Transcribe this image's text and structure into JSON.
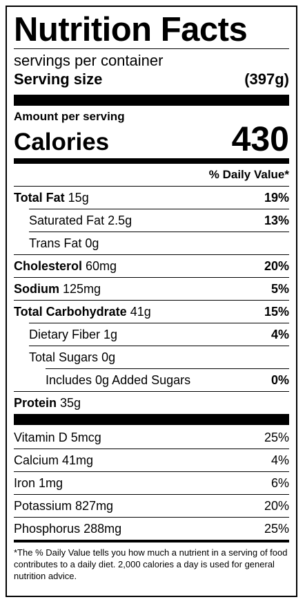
{
  "label": {
    "title": "Nutrition Facts",
    "servings_per_container": "servings per container",
    "serving_size_label": "Serving size",
    "serving_size_value": "(397g)",
    "amount_per_serving": "Amount per serving",
    "calories_label": "Calories",
    "calories_value": "430",
    "daily_value_header": "% Daily Value*",
    "nutrients": [
      {
        "name": "Total Fat",
        "amount": " 15g",
        "dv": "19%"
      },
      {
        "name": "Saturated Fat",
        "amount": " 2.5g",
        "dv": "13%"
      },
      {
        "name": "Trans Fat",
        "amount": " 0g",
        "dv": ""
      },
      {
        "name": "Cholesterol",
        "amount": " 60mg",
        "dv": "20%"
      },
      {
        "name": "Sodium",
        "amount": " 125mg",
        "dv": "5%"
      },
      {
        "name": "Total Carbohydrate",
        "amount": " 41g",
        "dv": "15%"
      },
      {
        "name": "Dietary Fiber",
        "amount": " 1g",
        "dv": "4%"
      },
      {
        "name": "Total Sugars",
        "amount": " 0g",
        "dv": ""
      },
      {
        "name": "Includes 0g Added Sugars",
        "amount": "",
        "dv": "0%"
      },
      {
        "name": "Protein",
        "amount": " 35g",
        "dv": ""
      }
    ],
    "vitamins": [
      {
        "name": "Vitamin D 5mcg",
        "dv": "25%"
      },
      {
        "name": "Calcium 41mg",
        "dv": "4%"
      },
      {
        "name": "Iron 1mg",
        "dv": "6%"
      },
      {
        "name": "Potassium 827mg",
        "dv": "20%"
      },
      {
        "name": "Phosphorus 288mg",
        "dv": "25%"
      }
    ],
    "footnote": "*The % Daily Value tells you how much a nutrient in a serving of food contributes to a daily diet. 2,000 calories a day is used for general nutrition advice."
  }
}
